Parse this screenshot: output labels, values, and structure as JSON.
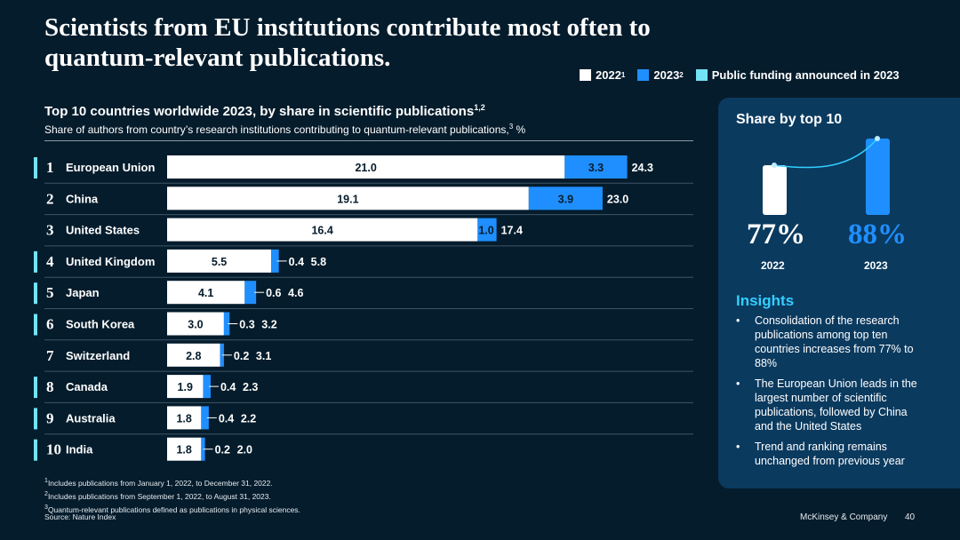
{
  "title": "Scientists from EU institutions contribute most often to quantum-relevant publications.",
  "legend": {
    "y2022_label": "2022",
    "y2022_sup": "1",
    "y2023_label": "2023",
    "y2023_sup": "2",
    "funding_label": "Public funding announced in 2023"
  },
  "chart_heading": {
    "title": "Top 10 countries worldwide 2023, by share in scientific publications",
    "title_sup": "1,2",
    "subtitle_a": "Share of authors from country’s research institutions contributing to quantum-relevant publications,",
    "subtitle_sup": "3",
    "subtitle_b": " %"
  },
  "colors": {
    "background": "#051c2c",
    "bar_2022": "#ffffff",
    "bar_2023": "#1f8fff",
    "funding_marker": "#72e3f4",
    "panel": "#0b3a5f",
    "insights_accent": "#33cfff"
  },
  "chart_data": {
    "type": "bar",
    "orientation": "horizontal",
    "stacked": true,
    "title": "Top 10 countries worldwide 2023, by share in scientific publications",
    "xlabel": "",
    "ylabel": "",
    "xlim": [
      0,
      24.3
    ],
    "unit": "%",
    "ranks": [
      "1",
      "2",
      "3",
      "4",
      "5",
      "6",
      "7",
      "8",
      "9",
      "10"
    ],
    "categories": [
      "European Union",
      "China",
      "United States",
      "United Kingdom",
      "Japan",
      "South Korea",
      "Switzerland",
      "Canada",
      "Australia",
      "India"
    ],
    "funding_announced_2023": [
      true,
      false,
      false,
      true,
      true,
      true,
      false,
      true,
      true,
      true
    ],
    "series": [
      {
        "name": "2022",
        "values": [
          21.0,
          19.1,
          16.4,
          5.5,
          4.1,
          3.0,
          2.8,
          1.9,
          1.8,
          1.8
        ]
      },
      {
        "name": "2023",
        "values": [
          3.3,
          3.9,
          1.0,
          0.4,
          0.6,
          0.3,
          0.2,
          0.4,
          0.4,
          0.2
        ]
      }
    ],
    "totals": [
      24.3,
      23.0,
      17.4,
      5.8,
      4.6,
      3.2,
      3.1,
      2.3,
      2.2,
      2.0
    ]
  },
  "share_panel": {
    "title": "Share by top 10",
    "values": [
      77,
      88
    ],
    "pct_2022": "77%",
    "pct_2023": "88%",
    "year_2022": "2022",
    "year_2023": "2023"
  },
  "insights": {
    "title": "Insights",
    "items": [
      "Consolidation of the research publications among top ten countries increases from 77% to 88%",
      "The European Union leads in the largest number of scientific publications, followed by China and the United States",
      "Trend and ranking remains unchanged from previous year"
    ]
  },
  "footnotes": [
    "Includes publications from January 1, 2022, to December 31, 2022.",
    "Includes publications from September 1, 2022, to August 31, 2023.",
    "Quantum-relevant publications defined as publications in physical sciences."
  ],
  "footnote_marks": [
    "1",
    "2",
    "3"
  ],
  "source": "Source: Nature Index",
  "brand": "McKinsey & Company",
  "page_number": "40"
}
